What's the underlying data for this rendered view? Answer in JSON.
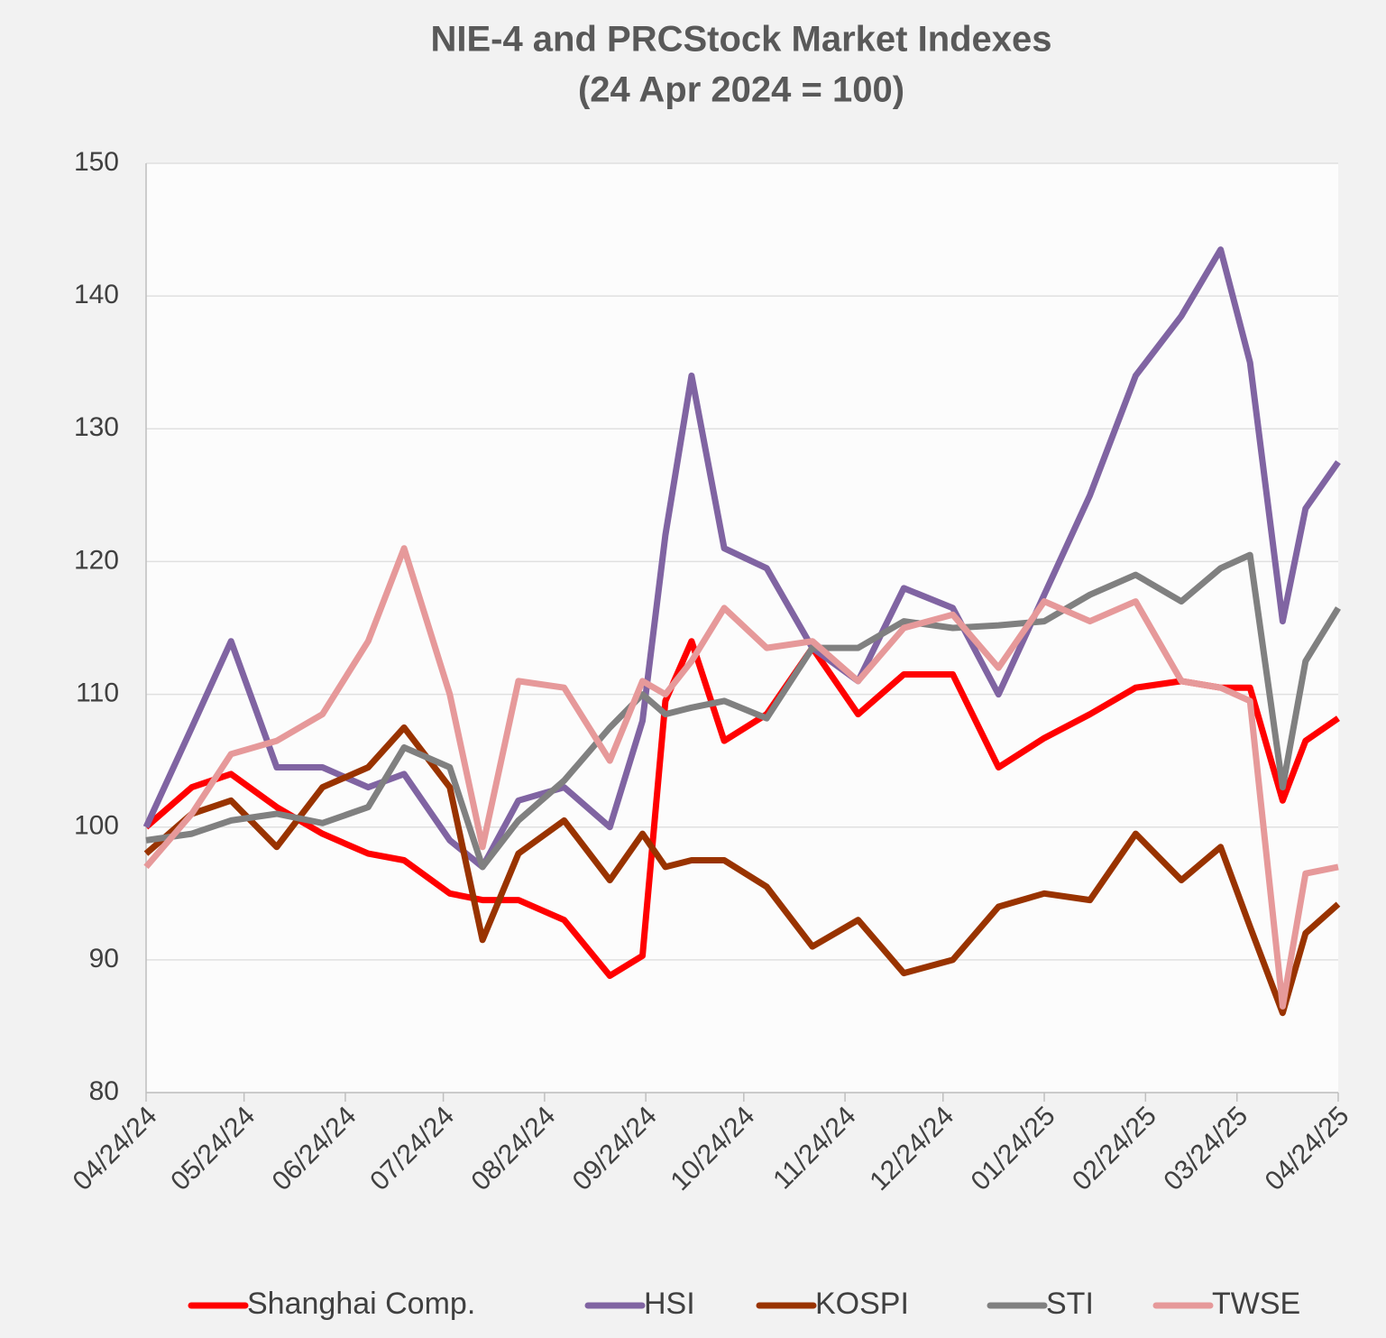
{
  "chart_data": {
    "type": "line",
    "title": "NIE-4 and PRCStock Market Indexes",
    "subtitle": "(24 Apr 2024 = 100)",
    "x": [
      "04/24/24",
      "05/08/24",
      "05/20/24",
      "06/03/24",
      "06/17/24",
      "07/01/24",
      "07/12/24",
      "07/26/24",
      "08/05/24",
      "08/16/24",
      "08/30/24",
      "09/13/24",
      "09/23/24",
      "09/30/24",
      "10/08/24",
      "10/18/24",
      "10/31/24",
      "11/14/24",
      "11/28/24",
      "12/12/24",
      "12/27/24",
      "01/10/25",
      "01/24/25",
      "02/07/25",
      "02/21/25",
      "03/07/25",
      "03/19/25",
      "03/28/25",
      "04/07/25",
      "04/14/25",
      "04/24/25"
    ],
    "series": [
      {
        "name": "Shanghai Comp.",
        "color": "#ff0000",
        "values": [
          100,
          103,
          104,
          101.5,
          99.5,
          98,
          97.5,
          95,
          94.5,
          94.5,
          93,
          88.8,
          90.3,
          109.5,
          114,
          106.5,
          108.5,
          113.5,
          108.5,
          111.5,
          111.5,
          104.5,
          106.7,
          108.5,
          110.5,
          111,
          110.5,
          110.5,
          102,
          106.5,
          108.2
        ]
      },
      {
        "name": "HSI",
        "color": "#8064a2",
        "values": [
          100,
          107.5,
          114,
          104.5,
          104.5,
          103,
          104,
          99,
          97,
          102,
          103,
          100,
          108,
          122,
          134,
          121,
          119.5,
          113.5,
          111,
          118,
          116.5,
          110,
          117.5,
          125,
          134,
          138.5,
          143.5,
          135,
          115.5,
          124,
          127.5
        ]
      },
      {
        "name": "KOSPI",
        "color": "#993300",
        "values": [
          98,
          101,
          102,
          98.5,
          103,
          104.5,
          107.5,
          103,
          91.5,
          98,
          100.5,
          96,
          99.5,
          97,
          97.5,
          97.5,
          95.5,
          91,
          93,
          89,
          90,
          94,
          95,
          94.5,
          99.5,
          96,
          98.5,
          92.5,
          86,
          92,
          94.2
        ]
      },
      {
        "name": "STI",
        "color": "#808080",
        "values": [
          99,
          99.5,
          100.5,
          101,
          100.3,
          101.5,
          106,
          104.5,
          97,
          100.5,
          103.5,
          107.5,
          110,
          108.5,
          109,
          109.5,
          108.2,
          113.5,
          113.5,
          115.5,
          115,
          115.2,
          115.5,
          117.5,
          119,
          117,
          119.5,
          120.5,
          103,
          112.5,
          116.5
        ]
      },
      {
        "name": "TWSE",
        "color": "#e6999a",
        "values": [
          97,
          101,
          105.5,
          106.5,
          108.5,
          114,
          121,
          110,
          98.5,
          111,
          110.5,
          105,
          111,
          110,
          112.5,
          116.5,
          113.5,
          114,
          111,
          115,
          116,
          112,
          117,
          115.5,
          117,
          111,
          110.5,
          109.5,
          86.5,
          96.5,
          97
        ]
      }
    ],
    "ylim": [
      80,
      150
    ],
    "yticks": [
      80,
      90,
      100,
      110,
      120,
      130,
      140,
      150
    ],
    "xlim": [
      "04/24/24",
      "04/24/25"
    ],
    "xticks": [
      "04/24/24",
      "05/24/24",
      "06/24/24",
      "07/24/24",
      "08/24/24",
      "09/24/24",
      "10/24/24",
      "11/24/24",
      "12/24/24",
      "01/24/25",
      "02/24/25",
      "03/24/25",
      "04/24/25"
    ],
    "grid": true,
    "legend": "bottom"
  }
}
